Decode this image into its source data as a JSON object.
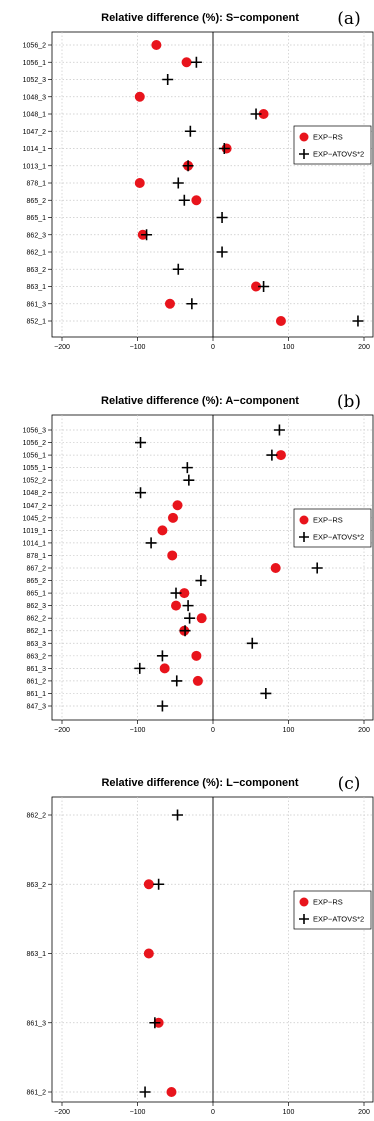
{
  "chart_data": [
    {
      "type": "scatter",
      "title": "Relative difference (%):  S−component",
      "panel_label": "(a)",
      "xlim": [
        -200,
        200
      ],
      "xticks": [
        "−200",
        "−100",
        "0",
        "100",
        "200"
      ],
      "xtick_values": [
        -200,
        -100,
        0,
        100,
        200
      ],
      "grid": true,
      "legend_position": "right",
      "categories": [
        "1056_2",
        "1056_1",
        "1052_3",
        "1048_3",
        "1048_1",
        "1047_2",
        "1014_1",
        "1013_1",
        "878_1",
        "865_2",
        "865_1",
        "862_3",
        "862_1",
        "863_2",
        "863_1",
        "861_3",
        "852_1"
      ],
      "series": [
        {
          "name": "EXP−RS",
          "color": "#e8141c",
          "marker": "circle",
          "values": [
            -75,
            -35,
            null,
            -97,
            67,
            null,
            18,
            -33,
            -97,
            -22,
            null,
            -93,
            null,
            null,
            57,
            -57,
            90
          ]
        },
        {
          "name": "EXP−ATOVS*2",
          "color": "#000000",
          "marker": "plus",
          "values": [
            null,
            -22,
            -60,
            null,
            57,
            -30,
            15,
            -33,
            -46,
            -38,
            12,
            -88,
            12,
            -46,
            67,
            -28,
            192
          ]
        }
      ]
    },
    {
      "type": "scatter",
      "title": "Relative difference (%):  A−component",
      "panel_label": "(b)",
      "xlim": [
        -200,
        200
      ],
      "xticks": [
        "−200",
        "−100",
        "0",
        "100",
        "200"
      ],
      "xtick_values": [
        -200,
        -100,
        0,
        100,
        200
      ],
      "grid": true,
      "legend_position": "right",
      "categories": [
        "1056_3",
        "1056_2",
        "1056_1",
        "1055_1",
        "1052_2",
        "1048_2",
        "1047_2",
        "1045_2",
        "1019_1",
        "1014_1",
        "878_1",
        "867_2",
        "865_2",
        "865_1",
        "862_3",
        "862_2",
        "862_1",
        "863_3",
        "863_2",
        "861_3",
        "861_2",
        "861_1",
        "847_3"
      ],
      "series": [
        {
          "name": "EXP−RS",
          "color": "#e8141c",
          "marker": "circle",
          "values": [
            null,
            null,
            90,
            null,
            null,
            null,
            -47,
            -53,
            -67,
            null,
            -54,
            83,
            null,
            -38,
            -49,
            -15,
            -38,
            null,
            -22,
            -64,
            -20,
            null,
            null
          ]
        },
        {
          "name": "EXP−ATOVS*2",
          "color": "#000000",
          "marker": "plus",
          "values": [
            88,
            -96,
            78,
            -34,
            -32,
            -96,
            null,
            null,
            null,
            -82,
            null,
            138,
            -16,
            -49,
            -33,
            -31,
            -37,
            52,
            -67,
            -97,
            -48,
            70,
            -67
          ]
        }
      ]
    },
    {
      "type": "scatter",
      "title": "Relative difference (%):  L−component",
      "panel_label": "(c)",
      "xlim": [
        -200,
        200
      ],
      "xticks": [
        "−200",
        "−100",
        "0",
        "100",
        "200"
      ],
      "xtick_values": [
        -200,
        -100,
        0,
        100,
        200
      ],
      "grid": true,
      "legend_position": "right",
      "categories": [
        "862_2",
        "863_2",
        "863_1",
        "861_3",
        "861_2"
      ],
      "series": [
        {
          "name": "EXP−RS",
          "color": "#e8141c",
          "marker": "circle",
          "values": [
            null,
            -85,
            -85,
            -72,
            -55
          ]
        },
        {
          "name": "EXP−ATOVS*2",
          "color": "#000000",
          "marker": "plus",
          "values": [
            -47,
            -72,
            null,
            -77,
            -90
          ]
        }
      ]
    }
  ]
}
